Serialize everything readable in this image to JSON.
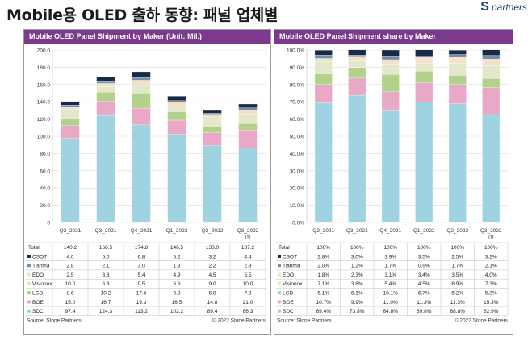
{
  "page": {
    "title": "Mobile용 OLED 출하 동향: 패널 업체별",
    "logo_text": "partners",
    "logo_mark": "S"
  },
  "colors": {
    "header_bg": "#7b3a8c",
    "SDC": "#9fd3e2",
    "BOE": "#e9a8c6",
    "LGD": "#b2d28b",
    "Visionox": "#e3e8cc",
    "EDO": "#f4e2c8",
    "Tianma": "#6f8faa",
    "CSOT": "#1a2a44"
  },
  "chart_data": [
    {
      "type": "bar",
      "stacked": true,
      "title": "Mobile OLED Panel Shipment by Maker (Unit: Mil.)",
      "categories": [
        "Q2_2021",
        "Q3_2021",
        "Q4_2021",
        "Q1_2022",
        "Q2_2022",
        "Q3_2022\n(f)"
      ],
      "ylim": [
        0,
        200
      ],
      "yticks": [
        "0",
        "20.0",
        "40.0",
        "60.0",
        "80.0",
        "100.0",
        "120.0",
        "140.0",
        "160.0",
        "180.0",
        "200.0"
      ],
      "grid": true,
      "series": [
        {
          "name": "SDC",
          "values": [
            97.4,
            124.3,
            113.2,
            102.2,
            89.4,
            86.3
          ]
        },
        {
          "name": "BOE",
          "values": [
            15.0,
            16.7,
            19.3,
            16.5,
            14.8,
            21.0
          ]
        },
        {
          "name": "LGD",
          "values": [
            8.6,
            10.2,
            17.6,
            9.8,
            6.8,
            7.3
          ]
        },
        {
          "name": "Visionox",
          "values": [
            10.0,
            6.3,
            9.5,
            6.6,
            9.0,
            10.0
          ]
        },
        {
          "name": "EDO",
          "values": [
            2.5,
            3.8,
            5.4,
            4.9,
            4.5,
            5.5
          ]
        },
        {
          "name": "Tianma",
          "values": [
            2.8,
            2.1,
            3.0,
            1.3,
            2.2,
            2.9
          ]
        },
        {
          "name": "CSOT",
          "values": [
            4.0,
            5.0,
            6.8,
            5.2,
            3.2,
            4.4
          ]
        }
      ],
      "table": {
        "total_label": "Total",
        "totals": [
          "140.2",
          "168.5",
          "174.8",
          "146.5",
          "130.0",
          "137.2"
        ],
        "rows": [
          {
            "name": "CSOT",
            "cells": [
              "4.0",
              "5.0",
              "6.8",
              "5.2",
              "3.2",
              "4.4"
            ]
          },
          {
            "name": "Tianma",
            "cells": [
              "2.8",
              "2.1",
              "3.0",
              "1.3",
              "2.2",
              "2.9"
            ]
          },
          {
            "name": "EDO",
            "cells": [
              "2.5",
              "3.8",
              "5.4",
              "4.9",
              "4.5",
              "5.5"
            ]
          },
          {
            "name": "Visionox",
            "cells": [
              "10.0",
              "6.3",
              "9.5",
              "6.6",
              "9.0",
              "10.0"
            ]
          },
          {
            "name": "LGD",
            "cells": [
              "8.6",
              "10.2",
              "17.6",
              "9.8",
              "6.8",
              "7.3"
            ]
          },
          {
            "name": "BOE",
            "cells": [
              "15.0",
              "16.7",
              "19.3",
              "16.5",
              "14.8",
              "21.0"
            ]
          },
          {
            "name": "SDC",
            "cells": [
              "97.4",
              "124.3",
              "113.2",
              "102.2",
              "89.4",
              "86.3"
            ]
          }
        ]
      },
      "source": "Source: Stone Partners",
      "copyright": "© 2022 Stone Partners"
    },
    {
      "type": "bar",
      "stacked": true,
      "percent": true,
      "title": "Mobile OLED Panel Shipment share by Maker",
      "categories": [
        "Q2_2021",
        "Q3_2021",
        "Q4_2021",
        "Q1_2022",
        "Q2_2022",
        "Q3_2022\n(f)"
      ],
      "ylim": [
        0,
        100
      ],
      "yticks": [
        "0.0%",
        "10.0%",
        "20.0%",
        "30.0%",
        "40.0%",
        "50.0%",
        "60.0%",
        "70.0%",
        "80.0%",
        "90.0%",
        "100.0%"
      ],
      "grid": true,
      "series": [
        {
          "name": "SDC",
          "values": [
            69.4,
            73.8,
            64.8,
            69.8,
            68.8,
            62.9
          ]
        },
        {
          "name": "BOE",
          "values": [
            10.7,
            9.9,
            11.0,
            11.3,
            11.3,
            15.3
          ]
        },
        {
          "name": "LGD",
          "values": [
            6.1,
            6.1,
            10.1,
            6.7,
            5.2,
            5.3
          ]
        },
        {
          "name": "Visionox",
          "values": [
            7.1,
            3.8,
            5.4,
            4.5,
            6.9,
            7.3
          ]
        },
        {
          "name": "EDO",
          "values": [
            1.8,
            2.3,
            3.1,
            3.4,
            3.5,
            4.0
          ]
        },
        {
          "name": "Tianma",
          "values": [
            2.0,
            1.2,
            1.7,
            0.9,
            1.7,
            2.1
          ]
        },
        {
          "name": "CSOT",
          "values": [
            2.8,
            3.0,
            3.9,
            3.5,
            2.5,
            3.2
          ]
        }
      ],
      "table": {
        "total_label": "Total",
        "totals": [
          "100%",
          "100%",
          "100%",
          "100%",
          "100%",
          "100%"
        ],
        "rows": [
          {
            "name": "CSOT",
            "cells": [
              "2.8%",
              "3.0%",
              "3.9%",
              "3.5%",
              "2.5%",
              "3.2%"
            ]
          },
          {
            "name": "Tianma",
            "cells": [
              "2.0%",
              "1.2%",
              "1.7%",
              "0.9%",
              "1.7%",
              "2.1%"
            ]
          },
          {
            "name": "EDO",
            "cells": [
              "1.8%",
              "2.3%",
              "3.1%",
              "3.4%",
              "3.5%",
              "4.0%"
            ]
          },
          {
            "name": "Visionox",
            "cells": [
              "7.1%",
              "3.8%",
              "5.4%",
              "4.5%",
              "6.9%",
              "7.3%"
            ]
          },
          {
            "name": "LGD",
            "cells": [
              "6.1%",
              "6.1%",
              "10.1%",
              "6.7%",
              "5.2%",
              "5.3%"
            ]
          },
          {
            "name": "BOE",
            "cells": [
              "10.7%",
              "9.9%",
              "11.0%",
              "11.3%",
              "11.3%",
              "15.3%"
            ]
          },
          {
            "name": "SDC",
            "cells": [
              "69.4%",
              "73.8%",
              "64.8%",
              "69.8%",
              "68.8%",
              "62.9%"
            ]
          }
        ]
      },
      "source": "Source: Stone Partners",
      "copyright": "© 2022 Stone Partners"
    }
  ]
}
